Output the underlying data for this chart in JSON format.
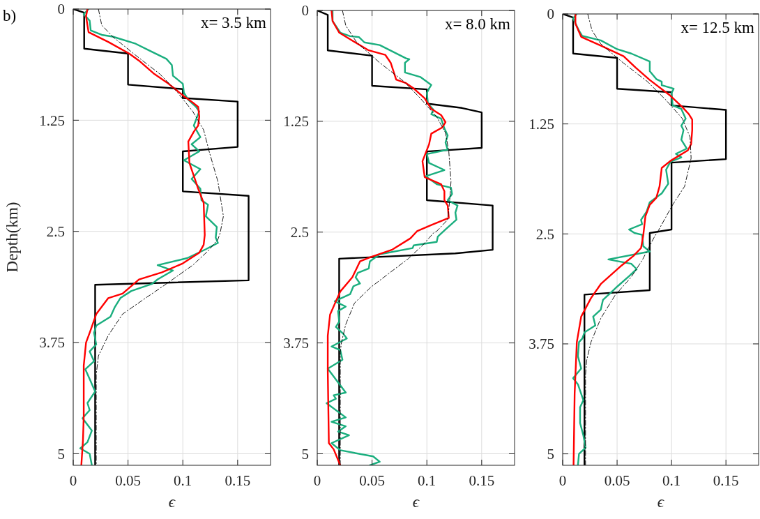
{
  "chart_data": [
    {
      "type": "line",
      "title": "x= 3.5 km",
      "xlabel": "ϵ",
      "ylabel": "Depth(km)",
      "annotations": [
        "b)"
      ],
      "xlim": [
        0,
        0.18
      ],
      "ylim": [
        5.13,
        0
      ],
      "xticks": [
        0,
        0.05,
        0.1,
        0.15
      ],
      "yticks": [
        0,
        1.25,
        2.5,
        3.75,
        5
      ],
      "grid": true,
      "series": [
        {
          "color": "#000000",
          "line_style": "solid",
          "x": [
            0,
            0.01,
            0.01,
            0.05,
            0.05,
            0.1,
            0.1,
            0.15,
            0.15,
            0.1,
            0.1,
            0.16,
            0.16,
            0.02,
            0.02
          ],
          "values": [
            0,
            0.04,
            0.445,
            0.5,
            0.85,
            0.9,
            1.0,
            1.04,
            1.55,
            1.6,
            2.05,
            2.1,
            3.05,
            3.1,
            5.13
          ]
        },
        {
          "color": "#1aae7e",
          "line_style": "solid",
          "x": [
            0.014,
            0.0096,
            0.015,
            0.016,
            0.026,
            0.036,
            0.057,
            0.07,
            0.085,
            0.09,
            0.091,
            0.1,
            0.101,
            0.105,
            0.112,
            0.115,
            0.11,
            0.116,
            0.108,
            0.115,
            0.101,
            0.116,
            0.108,
            0.116,
            0.117,
            0.123,
            0.121,
            0.131,
            0.13,
            0.132,
            0.121,
            0.104,
            0.077,
            0.091,
            0.077,
            0.072,
            0.053,
            0.043,
            0.038,
            0.034,
            0.021,
            0.019,
            0.021,
            0.015,
            0.019,
            0.011,
            0.015,
            0.02,
            0.013,
            0.015,
            0.0085,
            0.017,
            0.013,
            0.0064,
            0.015,
            0.017
          ],
          "values": [
            0,
            0.058,
            0.13,
            0.24,
            0.29,
            0.31,
            0.39,
            0.47,
            0.56,
            0.63,
            0.75,
            0.84,
            0.94,
            1.02,
            1.1,
            1.15,
            1.31,
            1.44,
            1.52,
            1.6,
            1.7,
            1.8,
            1.91,
            2.02,
            2.15,
            2.2,
            2.33,
            2.45,
            2.57,
            2.63,
            2.7,
            2.8,
            2.88,
            2.94,
            3.04,
            3.09,
            3.17,
            3.25,
            3.35,
            3.46,
            3.56,
            3.64,
            3.77,
            3.85,
            3.96,
            4.05,
            4.16,
            4.3,
            4.43,
            4.51,
            4.6,
            4.74,
            4.87,
            4.94,
            5.0,
            5.13
          ]
        },
        {
          "color": "#ff0000",
          "line_style": "solid",
          "x": [
            0.013,
            0.0117,
            0.014,
            0.032,
            0.051,
            0.06,
            0.074,
            0.087,
            0.1,
            0.109,
            0.114,
            0.115,
            0.114,
            0.11,
            0.105,
            0.106,
            0.114,
            0.119,
            0.12,
            0.119,
            0.115,
            0.1,
            0.081,
            0.06,
            0.045,
            0.032,
            0.021,
            0.015,
            0.0117,
            0.0096,
            0.0096,
            0.0089,
            0.0074
          ],
          "values": [
            0,
            0.08,
            0.26,
            0.37,
            0.5,
            0.58,
            0.73,
            0.84,
            0.97,
            1.05,
            1.1,
            1.21,
            1.31,
            1.38,
            1.49,
            1.73,
            2.02,
            2.18,
            2.54,
            2.65,
            2.74,
            2.86,
            2.96,
            3.04,
            3.2,
            3.25,
            3.43,
            3.64,
            3.75,
            4.01,
            4.58,
            4.85,
            5.13
          ]
        },
        {
          "color": "#000000",
          "line_style": "dashed",
          "x": [
            0.023,
            0.026,
            0.036,
            0.057,
            0.079,
            0.094,
            0.109,
            0.119,
            0.124,
            0.132,
            0.137,
            0.134,
            0.132,
            0.123,
            0.109,
            0.085,
            0.066,
            0.045,
            0.032,
            0.023,
            0.021,
            0.021,
            0.021
          ],
          "values": [
            0,
            0.18,
            0.31,
            0.52,
            0.73,
            0.92,
            1.15,
            1.36,
            1.6,
            1.94,
            2.33,
            2.52,
            2.59,
            2.72,
            2.88,
            3.09,
            3.25,
            3.43,
            3.67,
            3.9,
            4.11,
            4.59,
            5.13
          ]
        }
      ]
    },
    {
      "type": "line",
      "title": "x= 8.0 km",
      "xlabel": "ϵ",
      "xlim": [
        0,
        0.18
      ],
      "ylim": [
        5.13,
        0
      ],
      "xticks": [
        0,
        0.05,
        0.1,
        0.15
      ],
      "yticks": [
        0,
        1.25,
        2.5,
        3.75,
        5
      ],
      "grid": true,
      "series": [
        {
          "color": "#000000",
          "line_style": "solid",
          "x": [
            0,
            0.0096,
            0.0096,
            0.05,
            0.05,
            0.1,
            0.1,
            0.132,
            0.15,
            0.15,
            0.1,
            0.1,
            0.16,
            0.16,
            0.126,
            0.02,
            0.02
          ],
          "values": [
            0,
            0.05,
            0.45,
            0.51,
            0.85,
            0.89,
            1.05,
            1.1,
            1.15,
            1.55,
            1.59,
            2.14,
            2.2,
            2.7,
            2.74,
            2.8,
            5.13
          ]
        },
        {
          "color": "#1aae7e",
          "line_style": "solid",
          "x": [
            0.014,
            0.014,
            0.021,
            0.03,
            0.038,
            0.043,
            0.057,
            0.081,
            0.084,
            0.08,
            0.08,
            0.094,
            0.104,
            0.102,
            0.1,
            0.101,
            0.106,
            0.104,
            0.113,
            0.116,
            0.119,
            0.117,
            0.119,
            0.1,
            0.102,
            0.116,
            0.099,
            0.109,
            0.122,
            0.123,
            0.119,
            0.128,
            0.126,
            0.127,
            0.117,
            0.11,
            0.109,
            0.088,
            0.087,
            0.057,
            0.048,
            0.047,
            0.037,
            0.035,
            0.039,
            0.033,
            0.03,
            0.021,
            0.016,
            0.026,
            0.019,
            0.02,
            0.017,
            0.024,
            0.027,
            0.013,
            0.021,
            0.023,
            0.0096,
            0.026,
            0.015,
            0.017,
            0.0085,
            0.026,
            0.013,
            0.026,
            0.019,
            0.029,
            0.013,
            0.021,
            0.051,
            0.057,
            0.048
          ],
          "values": [
            0,
            0.12,
            0.25,
            0.29,
            0.3,
            0.36,
            0.39,
            0.54,
            0.55,
            0.59,
            0.7,
            0.75,
            0.84,
            0.88,
            0.93,
            1.05,
            1.12,
            1.17,
            1.22,
            1.33,
            1.41,
            1.49,
            1.57,
            1.62,
            1.72,
            1.8,
            1.87,
            1.96,
            2.0,
            2.07,
            2.14,
            2.2,
            2.28,
            2.36,
            2.47,
            2.55,
            2.61,
            2.65,
            2.68,
            2.75,
            2.83,
            2.91,
            2.96,
            3.01,
            3.08,
            3.11,
            3.2,
            3.25,
            3.28,
            3.34,
            3.39,
            3.51,
            3.57,
            3.65,
            3.7,
            3.79,
            3.83,
            3.94,
            4.04,
            4.31,
            4.34,
            4.38,
            4.43,
            4.59,
            4.64,
            4.69,
            4.75,
            4.79,
            4.88,
            4.96,
            5.03,
            5.09,
            5.13
          ]
        },
        {
          "color": "#ff0000",
          "line_style": "solid",
          "x": [
            0.013,
            0.014,
            0.02,
            0.032,
            0.047,
            0.062,
            0.067,
            0.072,
            0.081,
            0.088,
            0.098,
            0.104,
            0.113,
            0.117,
            0.114,
            0.104,
            0.102,
            0.096,
            0.098,
            0.113,
            0.116,
            0.116,
            0.119,
            0.12,
            0.104,
            0.091,
            0.085,
            0.068,
            0.049,
            0.039,
            0.032,
            0.021,
            0.017,
            0.0117,
            0.0096,
            0.0096,
            0.0106,
            0.015,
            0.021
          ],
          "values": [
            0,
            0.12,
            0.25,
            0.34,
            0.45,
            0.5,
            0.59,
            0.78,
            0.82,
            0.88,
            0.99,
            1.11,
            1.18,
            1.26,
            1.32,
            1.39,
            1.51,
            1.7,
            1.88,
            1.96,
            2.04,
            2.14,
            2.2,
            2.34,
            2.42,
            2.49,
            2.57,
            2.7,
            2.78,
            2.83,
            3.01,
            3.17,
            3.28,
            3.43,
            3.67,
            4.07,
            4.88,
            4.95,
            5.13
          ]
        },
        {
          "color": "#000000",
          "line_style": "dashed",
          "x": [
            0.023,
            0.026,
            0.036,
            0.057,
            0.079,
            0.094,
            0.109,
            0.117,
            0.12,
            0.122,
            0.121,
            0.119,
            0.109,
            0.106,
            0.096,
            0.083,
            0.066,
            0.049,
            0.034,
            0.026,
            0.022,
            0.021,
            0.021
          ],
          "values": [
            0,
            0.17,
            0.36,
            0.59,
            0.8,
            0.99,
            1.2,
            1.38,
            1.59,
            1.93,
            2.12,
            2.36,
            2.49,
            2.51,
            2.65,
            2.8,
            2.96,
            3.12,
            3.3,
            3.54,
            3.75,
            3.86,
            5.13
          ]
        }
      ]
    },
    {
      "type": "line",
      "title": "x= 12.5 km",
      "xlabel": "ϵ",
      "xlim": [
        0,
        0.18
      ],
      "ylim": [
        5.13,
        0
      ],
      "xticks": [
        0,
        0.05,
        0.1,
        0.15
      ],
      "yticks": [
        0,
        1.25,
        2.5,
        3.75,
        5
      ],
      "grid": true,
      "series": [
        {
          "color": "#000000",
          "line_style": "solid",
          "x": [
            0,
            0.0096,
            0.0096,
            0.05,
            0.05,
            0.1,
            0.1,
            0.15,
            0.15,
            0.1,
            0.1,
            0.08,
            0.08,
            0.02,
            0.02
          ],
          "values": [
            0,
            0.04,
            0.45,
            0.5,
            0.85,
            0.89,
            1.04,
            1.09,
            1.65,
            1.69,
            2.45,
            2.49,
            3.14,
            3.19,
            5.13
          ]
        },
        {
          "color": "#1aae7e",
          "line_style": "solid",
          "x": [
            0.0128,
            0.0096,
            0.015,
            0.018,
            0.035,
            0.05,
            0.063,
            0.08,
            0.08,
            0.086,
            0.091,
            0.091,
            0.102,
            0.1,
            0.101,
            0.109,
            0.113,
            0.109,
            0.111,
            0.109,
            0.114,
            0.104,
            0.109,
            0.099,
            0.095,
            0.097,
            0.091,
            0.08,
            0.077,
            0.072,
            0.073,
            0.061,
            0.066,
            0.073,
            0.074,
            0.08,
            0.042,
            0.063,
            0.068,
            0.061,
            0.05,
            0.044,
            0.037,
            0.035,
            0.028,
            0.03,
            0.02,
            0.018,
            0.015,
            0.014,
            0.017,
            0.0096,
            0.014,
            0.019,
            0.016,
            0.016,
            0.019,
            0.021,
            0.015,
            0.014
          ],
          "values": [
            0,
            0.05,
            0.19,
            0.25,
            0.3,
            0.4,
            0.45,
            0.54,
            0.65,
            0.74,
            0.77,
            0.81,
            0.85,
            0.9,
            1.04,
            1.08,
            1.19,
            1.27,
            1.32,
            1.43,
            1.53,
            1.59,
            1.63,
            1.68,
            1.77,
            1.93,
            2.04,
            2.14,
            2.25,
            2.34,
            2.39,
            2.45,
            2.49,
            2.51,
            2.64,
            2.7,
            2.79,
            2.84,
            2.9,
            2.98,
            3.1,
            3.17,
            3.25,
            3.36,
            3.44,
            3.54,
            3.62,
            3.69,
            3.73,
            3.89,
            4.03,
            4.14,
            4.21,
            4.39,
            4.47,
            4.65,
            4.79,
            4.93,
            5.0,
            5.13
          ]
        },
        {
          "color": "#ff0000",
          "line_style": "solid",
          "x": [
            0.0117,
            0.0117,
            0.017,
            0.035,
            0.056,
            0.067,
            0.08,
            0.099,
            0.11,
            0.116,
            0.119,
            0.119,
            0.118,
            0.115,
            0.099,
            0.091,
            0.089,
            0.086,
            0.08,
            0.076,
            0.074,
            0.072,
            0.065,
            0.054,
            0.035,
            0.026,
            0.017,
            0.013,
            0.011,
            0.01
          ],
          "values": [
            0,
            0.11,
            0.26,
            0.36,
            0.48,
            0.61,
            0.75,
            0.93,
            1.06,
            1.14,
            1.2,
            1.32,
            1.48,
            1.55,
            1.67,
            1.75,
            1.96,
            2.09,
            2.17,
            2.3,
            2.52,
            2.66,
            2.75,
            2.86,
            3.07,
            3.23,
            3.44,
            3.73,
            4.31,
            5.13
          ]
        },
        {
          "color": "#000000",
          "line_style": "dashed",
          "x": [
            0.023,
            0.027,
            0.035,
            0.056,
            0.078,
            0.095,
            0.11,
            0.117,
            0.118,
            0.112,
            0.101,
            0.088,
            0.084,
            0.073,
            0.063,
            0.048,
            0.035,
            0.026,
            0.022,
            0.021,
            0.021
          ],
          "values": [
            0,
            0.19,
            0.34,
            0.56,
            0.77,
            0.98,
            1.19,
            1.4,
            1.64,
            1.96,
            2.17,
            2.46,
            2.54,
            2.8,
            2.99,
            3.2,
            3.46,
            3.73,
            3.94,
            4.1,
            5.13
          ]
        }
      ]
    }
  ]
}
